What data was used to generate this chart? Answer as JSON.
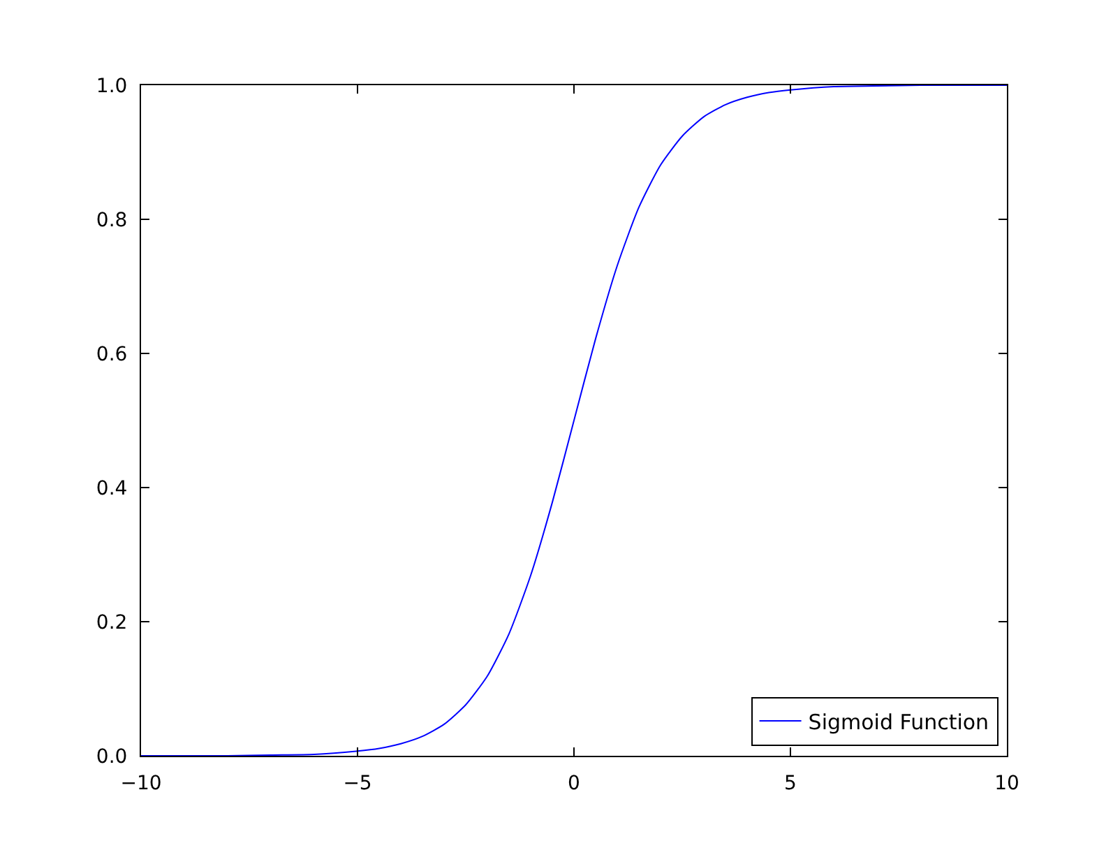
{
  "chart_data": {
    "type": "line",
    "x": [
      -10,
      -8,
      -7,
      -6,
      -5,
      -4.5,
      -4,
      -3.5,
      -3,
      -2.5,
      -2,
      -1.5,
      -1,
      -0.5,
      0,
      0.5,
      1,
      1.5,
      2,
      2.5,
      3,
      3.5,
      4,
      4.5,
      5,
      6,
      7,
      8,
      10
    ],
    "series": [
      {
        "name": "Sigmoid Function",
        "color": "#0000ff",
        "values": [
          0,
          0,
          0.001,
          0.002,
          0.007,
          0.011,
          0.018,
          0.029,
          0.047,
          0.076,
          0.119,
          0.182,
          0.269,
          0.378,
          0.5,
          0.622,
          0.731,
          0.818,
          0.881,
          0.924,
          0.953,
          0.971,
          0.982,
          0.989,
          0.993,
          0.998,
          0.999,
          1,
          1
        ]
      }
    ],
    "xlim": [
      -10,
      10
    ],
    "xticks": [
      {
        "value": -10,
        "label": "−10"
      },
      {
        "value": -5,
        "label": "−5"
      },
      0,
      5,
      10
    ],
    "ylim": [
      0,
      1
    ],
    "yticks": [
      {
        "value": 0,
        "label": "0.0"
      },
      0.2,
      0.4,
      0.6,
      0.8,
      {
        "value": 1,
        "label": "1.0"
      }
    ],
    "legend": "bottom right",
    "marker": "none",
    "line_style": "solid"
  }
}
